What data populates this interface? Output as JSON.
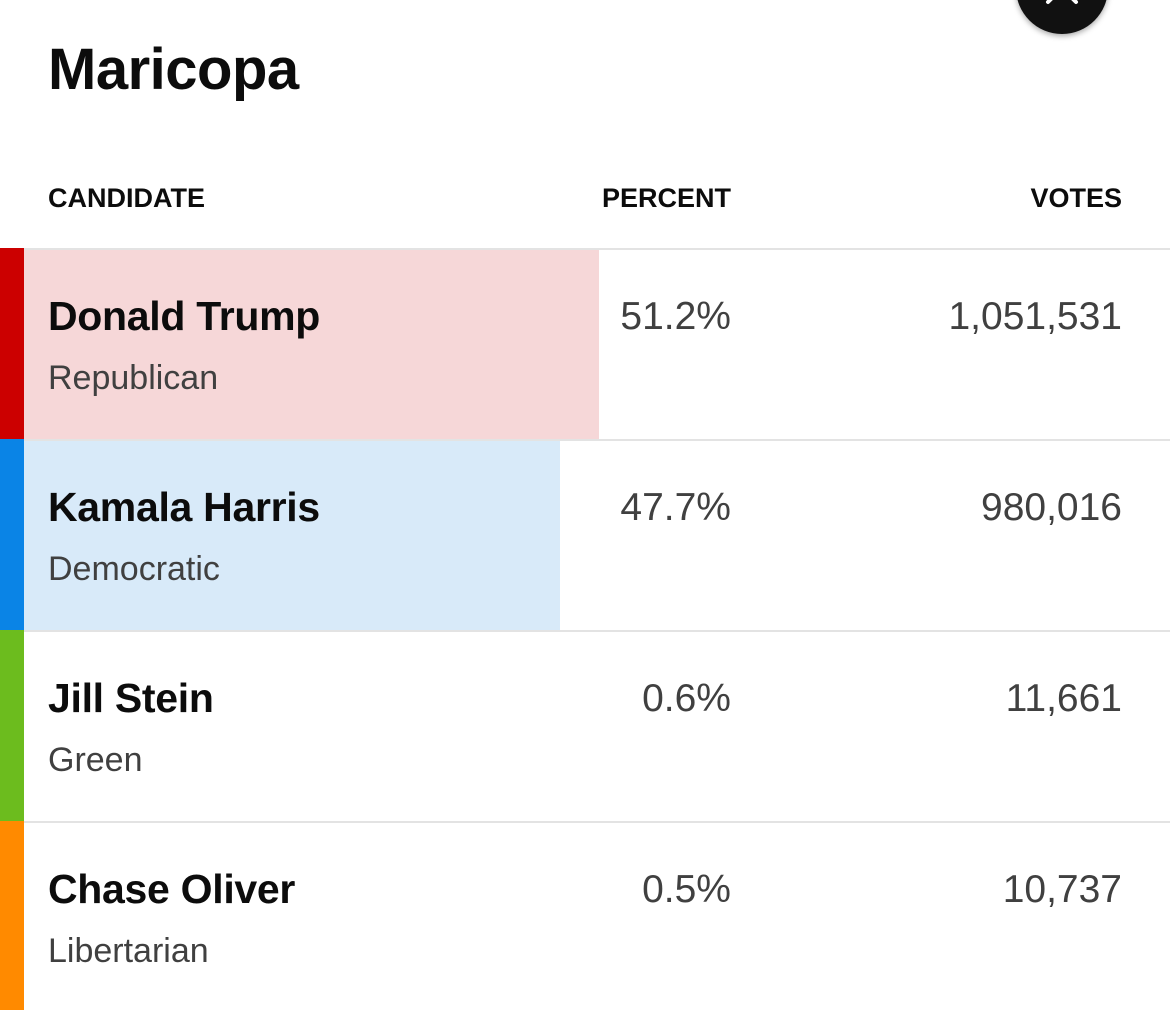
{
  "county": "Maricopa",
  "headers": {
    "candidate": "CANDIDATE",
    "percent": "PERCENT",
    "votes": "VOTES"
  },
  "close_icon": "close-icon",
  "candidates": [
    {
      "name": "Donald Trump",
      "party": "Republican",
      "percent": "51.2%",
      "votes": "1,051,531",
      "share": 51.2,
      "bar_color": "#cc0000",
      "fill_color": "#f6d7d8"
    },
    {
      "name": "Kamala Harris",
      "party": "Democratic",
      "percent": "47.7%",
      "votes": "980,016",
      "share": 47.7,
      "bar_color": "#0a84e6",
      "fill_color": "#d8eaf9"
    },
    {
      "name": "Jill Stein",
      "party": "Green",
      "percent": "0.6%",
      "votes": "11,661",
      "share": 0.6,
      "bar_color": "#6cbc1e",
      "fill_color": "#ffffff"
    },
    {
      "name": "Chase Oliver",
      "party": "Libertarian",
      "percent": "0.5%",
      "votes": "10,737",
      "share": 0.5,
      "bar_color": "#ff8a00",
      "fill_color": "#ffffff"
    }
  ]
}
